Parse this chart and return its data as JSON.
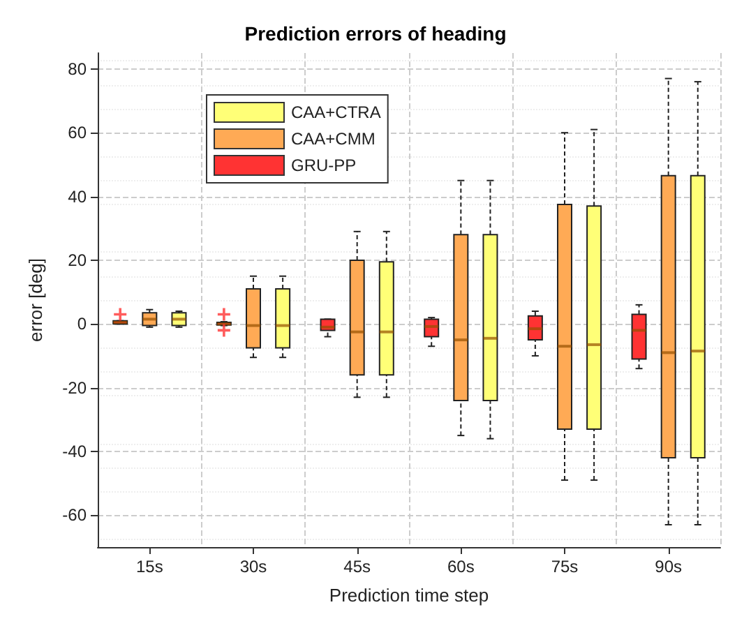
{
  "chart_data": {
    "type": "box",
    "title": "Prediction errors of heading",
    "xlabel": "Prediction time step",
    "ylabel": "error [deg]",
    "categories": [
      "15s",
      "30s",
      "45s",
      "60s",
      "75s",
      "90s"
    ],
    "ylim": [
      -70,
      85
    ],
    "yticks": [
      -60,
      -40,
      -20,
      0,
      20,
      40,
      60,
      80
    ],
    "grid": true,
    "legend": "top left",
    "series": [
      {
        "name": "GRU-PP",
        "color": "#ff3333",
        "boxes": [
          {
            "low": 0,
            "q1": 0,
            "median": 0.5,
            "q3": 1,
            "high": 1,
            "outliers": [
              3
            ]
          },
          {
            "low": -0.5,
            "q1": -0.3,
            "median": 0,
            "q3": 0.5,
            "high": 0.7,
            "outliers": [
              3,
              -2
            ]
          },
          {
            "low": -4,
            "q1": -2,
            "median": -1,
            "q3": 1.5,
            "high": 1.5
          },
          {
            "low": -7,
            "q1": -4,
            "median": -0.8,
            "q3": 1.5,
            "high": 2
          },
          {
            "low": -10,
            "q1": -5,
            "median": -1.5,
            "q3": 2.5,
            "high": 4
          },
          {
            "low": -14,
            "q1": -11,
            "median": -2,
            "q3": 3,
            "high": 6
          }
        ]
      },
      {
        "name": "CAA+CMM",
        "color": "#ffaa55",
        "boxes": [
          {
            "low": -1,
            "q1": -0.5,
            "median": 1.5,
            "q3": 3.5,
            "high": 4.5
          },
          {
            "low": -10.5,
            "q1": -7.5,
            "median": -0.5,
            "q3": 11,
            "high": 15
          },
          {
            "low": -23,
            "q1": -16,
            "median": -2.5,
            "q3": 20,
            "high": 29
          },
          {
            "low": -35,
            "q1": -24,
            "median": -5,
            "q3": 28,
            "high": 45
          },
          {
            "low": -49,
            "q1": -33,
            "median": -7,
            "q3": 37.5,
            "high": 60
          },
          {
            "low": -63,
            "q1": -42,
            "median": -9,
            "q3": 46.5,
            "high": 77
          }
        ]
      },
      {
        "name": "CAA+CTRA",
        "color": "#ffff77",
        "boxes": [
          {
            "low": -1,
            "q1": -0.5,
            "median": 1.5,
            "q3": 3.5,
            "high": 4
          },
          {
            "low": -10.5,
            "q1": -7.5,
            "median": -0.5,
            "q3": 11,
            "high": 15
          },
          {
            "low": -23,
            "q1": -16,
            "median": -2.5,
            "q3": 19.5,
            "high": 29
          },
          {
            "low": -36,
            "q1": -24,
            "median": -4.5,
            "q3": 28,
            "high": 45
          },
          {
            "low": -49,
            "q1": -33,
            "median": -6.5,
            "q3": 37,
            "high": 61
          },
          {
            "low": -63,
            "q1": -42,
            "median": -8.5,
            "q3": 46.5,
            "high": 76
          }
        ]
      }
    ]
  }
}
